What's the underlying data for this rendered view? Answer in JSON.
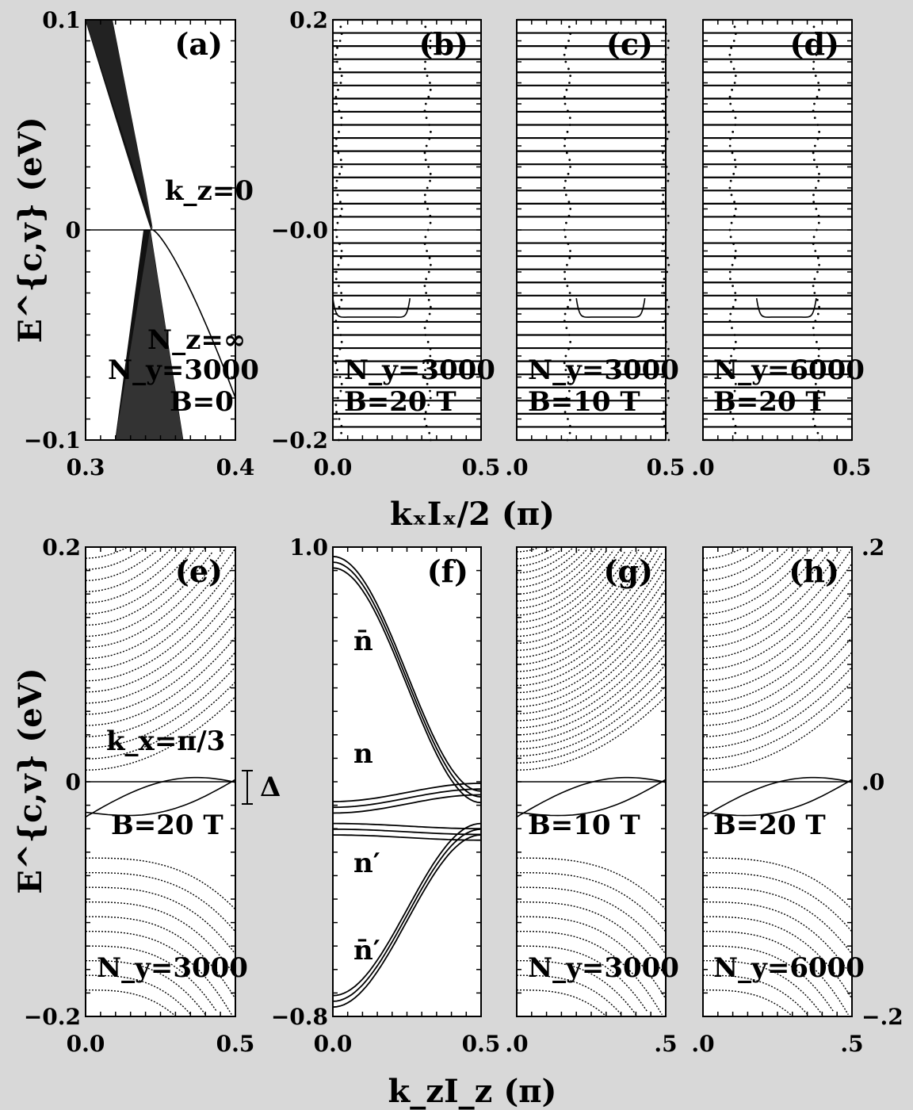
{
  "figure": {
    "xlabel_top": "kₓIₓ/2  (π)",
    "xlabel_bottom": "k_zI_z  (π)",
    "ylabel_top": "E^{c,v}  (eV)",
    "ylabel_bottom": "E^{c,v}  (eV)",
    "delta_label": "Δ"
  },
  "chart_data": [
    {
      "panel": "a",
      "label": "(a)",
      "type": "scatter",
      "xlim": [
        0.3,
        0.4
      ],
      "ylim": [
        -0.1,
        0.1
      ],
      "xticklabels": [
        "0.3",
        "0.4"
      ],
      "yticklabels": [
        "0.1",
        "0",
        "−0.1"
      ],
      "annotations": [
        "k_z=0",
        "N_z=∞",
        "N_y=3000",
        "B=0"
      ]
    },
    {
      "panel": "b",
      "label": "(b)",
      "type": "scatter",
      "xlim": [
        0.0,
        0.5
      ],
      "ylim": [
        -0.2,
        0.2
      ],
      "xticklabels": [
        "0.0",
        "0.5"
      ],
      "yticklabels": [
        "0.2",
        "−0.0",
        "−0.2"
      ],
      "annotations": [
        "N_y=3000",
        "B=20  T"
      ]
    },
    {
      "panel": "c",
      "label": "(c)",
      "type": "scatter",
      "xlim": [
        0.0,
        0.5
      ],
      "ylim": [
        -0.2,
        0.2
      ],
      "xticklabels": [
        ".0",
        "0.5"
      ],
      "annotations": [
        "N_y=3000",
        "B=10  T"
      ]
    },
    {
      "panel": "d",
      "label": "(d)",
      "type": "scatter",
      "xlim": [
        0.0,
        0.5
      ],
      "ylim": [
        -0.2,
        0.2
      ],
      "xticklabels": [
        ".0",
        "0.5"
      ],
      "annotations": [
        "N_y=6000",
        "B=20  T"
      ]
    },
    {
      "panel": "e",
      "label": "(e)",
      "type": "line",
      "xlim": [
        0.0,
        0.5
      ],
      "ylim": [
        -0.2,
        0.2
      ],
      "xticklabels": [
        "0.0",
        "0.5"
      ],
      "yticklabels": [
        "0.2",
        "0",
        "−0.2"
      ],
      "annotations": [
        "k_x=π/3",
        "B=20  T",
        "N_y=3000"
      ]
    },
    {
      "panel": "f",
      "label": "(f)",
      "type": "line",
      "xlim": [
        0.0,
        0.5
      ],
      "ylim": [
        -0.8,
        1.0
      ],
      "xticklabels": [
        "0.0",
        "0.5"
      ],
      "yticklabels": [
        "1.0",
        "−0.8"
      ],
      "annotations": [
        "n̄",
        "n",
        "n′",
        "n̄′"
      ]
    },
    {
      "panel": "g",
      "label": "(g)",
      "type": "line",
      "xlim": [
        0.0,
        0.5
      ],
      "ylim": [
        -0.2,
        0.2
      ],
      "xticklabels": [
        ".0",
        ".5"
      ],
      "annotations": [
        "B=10  T",
        "N_y=3000"
      ]
    },
    {
      "panel": "h",
      "label": "(h)",
      "type": "line",
      "xlim": [
        0.0,
        0.5
      ],
      "ylim": [
        -0.2,
        0.2
      ],
      "xticklabels": [
        ".0",
        ".5"
      ],
      "yticklabels": [
        ".2",
        ".0",
        "−.2"
      ],
      "annotations": [
        "B=20  T",
        "N_y=6000"
      ]
    }
  ]
}
